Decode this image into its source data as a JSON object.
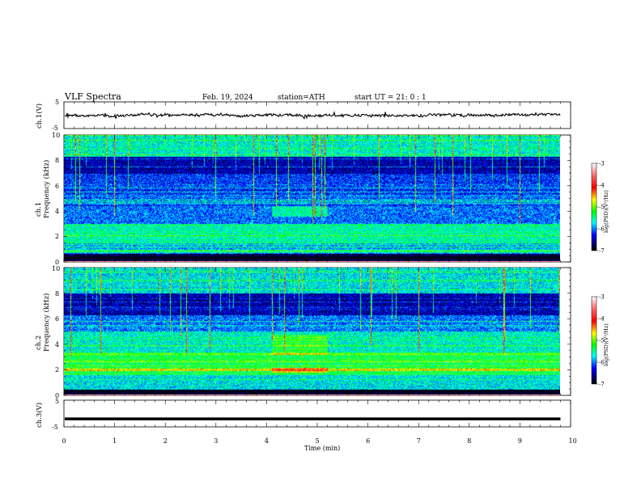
{
  "header": {
    "title": "VLF  Spectra",
    "date": "Feb. 19, 2024",
    "station": "station=ATH",
    "start": "start  UT  =    21: 0   : 1"
  },
  "colorbar": {
    "label": "log(PSD)(V²/Hz)",
    "ticks": [
      "-3",
      "-4",
      "-5",
      "-6",
      "-7"
    ],
    "stops": [
      "#ffffff",
      "#ff0000",
      "#ffff00",
      "#00ff00",
      "#00ffff",
      "#0000ff",
      "#000000"
    ]
  },
  "chart_data": [
    {
      "type": "line",
      "ylabel": "ch.1(V)",
      "ylim": [
        -5,
        5
      ],
      "yticks": [
        "5",
        "-5"
      ],
      "xlim": [
        0,
        10
      ],
      "description_level": 0.0
    },
    {
      "type": "heatmap",
      "ylabel": "Frequency  (kHz)",
      "channel_label": "ch.1",
      "ylim": [
        0,
        10
      ],
      "yticks": [
        "0",
        "2",
        "4",
        "6",
        "8",
        "10"
      ],
      "xlim": [
        0,
        10
      ],
      "data_extent_min": 9.8
    },
    {
      "type": "heatmap",
      "ylabel": "Frequency  (kHz)",
      "channel_label": "ch.2",
      "ylim": [
        0,
        10
      ],
      "yticks": [
        "0",
        "2",
        "4",
        "6",
        "8",
        "10"
      ],
      "xlim": [
        0,
        10
      ],
      "data_extent_min": 9.8
    },
    {
      "type": "line",
      "ylabel": "ch.3(V)",
      "ylim": [
        -5,
        5
      ],
      "yticks": [
        "5",
        "-5"
      ],
      "xlim": [
        0,
        10
      ],
      "level": -2
    }
  ],
  "xaxis": {
    "label": "Time  (min)",
    "ticks": [
      "0",
      "1",
      "2",
      "3",
      "4",
      "5",
      "6",
      "7",
      "8",
      "9",
      "10"
    ]
  }
}
